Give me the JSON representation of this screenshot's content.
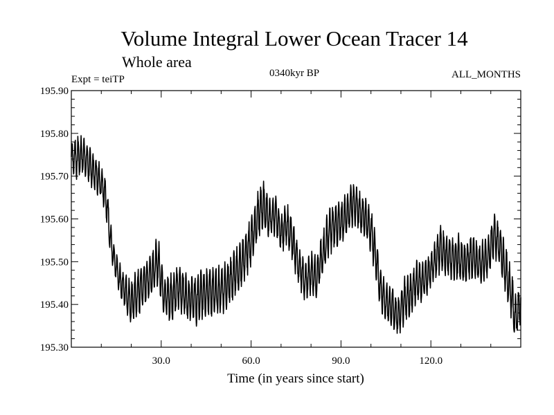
{
  "chart_data": {
    "type": "line",
    "title": "Volume Integral Lower Ocean Tracer 14",
    "subtitle": "Whole area",
    "experiment_label": "Expt = teiTP",
    "period_label": "0340kyr BP",
    "months_label": "ALL_MONTHS",
    "xlabel": "Time (in years since start)",
    "ylabel": "",
    "xlim": [
      0,
      150
    ],
    "ylim": [
      195.3,
      195.9
    ],
    "x_ticks": [
      30,
      60,
      90,
      120
    ],
    "x_tick_labels": [
      "30.0",
      "60.0",
      "90.0",
      "120.0"
    ],
    "x_minor_step": 10,
    "y_ticks": [
      195.3,
      195.4,
      195.5,
      195.6,
      195.7,
      195.8,
      195.9
    ],
    "y_tick_labels": [
      "195.30",
      "195.40",
      "195.50",
      "195.60",
      "195.70",
      "195.80",
      "195.90"
    ],
    "y_minor_step": 0.02,
    "series": [
      {
        "name": "Volume Integral Lower Ocean Tracer 14",
        "color": "#000000",
        "envelope": {
          "x": [
            0,
            2,
            4,
            6,
            8,
            10,
            11,
            12,
            13,
            14,
            16,
            18,
            20,
            23,
            26,
            29,
            31,
            33,
            36,
            39,
            42,
            45,
            48,
            51,
            54,
            57,
            60,
            62,
            64,
            66,
            68,
            70,
            72,
            74,
            76,
            78,
            80,
            82,
            84,
            86,
            88,
            90,
            92,
            94,
            96,
            98,
            100,
            102,
            103,
            105,
            107,
            109,
            111,
            113,
            115,
            117,
            119,
            121,
            123,
            125,
            127,
            129,
            131,
            133,
            135,
            137,
            139,
            141,
            143,
            145,
            147,
            148,
            149,
            150
          ],
          "high": [
            195.79,
            195.8,
            195.8,
            195.77,
            195.75,
            195.73,
            195.72,
            195.68,
            195.6,
            195.55,
            195.5,
            195.48,
            195.46,
            195.5,
            195.53,
            195.56,
            195.47,
            195.48,
            195.5,
            195.47,
            195.48,
            195.5,
            195.49,
            195.5,
            195.53,
            195.56,
            195.62,
            195.66,
            195.7,
            195.65,
            195.66,
            195.62,
            195.64,
            195.6,
            195.54,
            195.5,
            195.53,
            195.52,
            195.58,
            195.63,
            195.64,
            195.65,
            195.67,
            195.7,
            195.67,
            195.66,
            195.63,
            195.56,
            195.5,
            195.46,
            195.45,
            195.42,
            195.47,
            195.48,
            195.51,
            195.5,
            195.52,
            195.54,
            195.6,
            195.57,
            195.56,
            195.57,
            195.55,
            195.57,
            195.56,
            195.55,
            195.57,
            195.62,
            195.6,
            195.54,
            195.48,
            195.43,
            195.44,
            195.46
          ],
          "low": [
            195.7,
            195.69,
            195.7,
            195.68,
            195.66,
            195.64,
            195.62,
            195.57,
            195.52,
            195.47,
            195.42,
            195.38,
            195.35,
            195.37,
            195.4,
            195.44,
            195.37,
            195.35,
            195.38,
            195.36,
            195.34,
            195.37,
            195.36,
            195.38,
            195.4,
            195.43,
            195.48,
            195.54,
            195.57,
            195.55,
            195.56,
            195.52,
            195.53,
            195.49,
            195.44,
            195.4,
            195.42,
            195.41,
            195.46,
            195.51,
            195.53,
            195.53,
            195.56,
            195.58,
            195.57,
            195.55,
            195.52,
            195.44,
            195.38,
            195.35,
            195.34,
            195.32,
            195.35,
            195.36,
            195.4,
            195.4,
            195.42,
            195.45,
            195.47,
            195.46,
            195.45,
            195.45,
            195.44,
            195.45,
            195.45,
            195.44,
            195.46,
            195.5,
            195.48,
            195.42,
            195.36,
            195.31,
            195.33,
            195.35
          ]
        }
      }
    ]
  }
}
